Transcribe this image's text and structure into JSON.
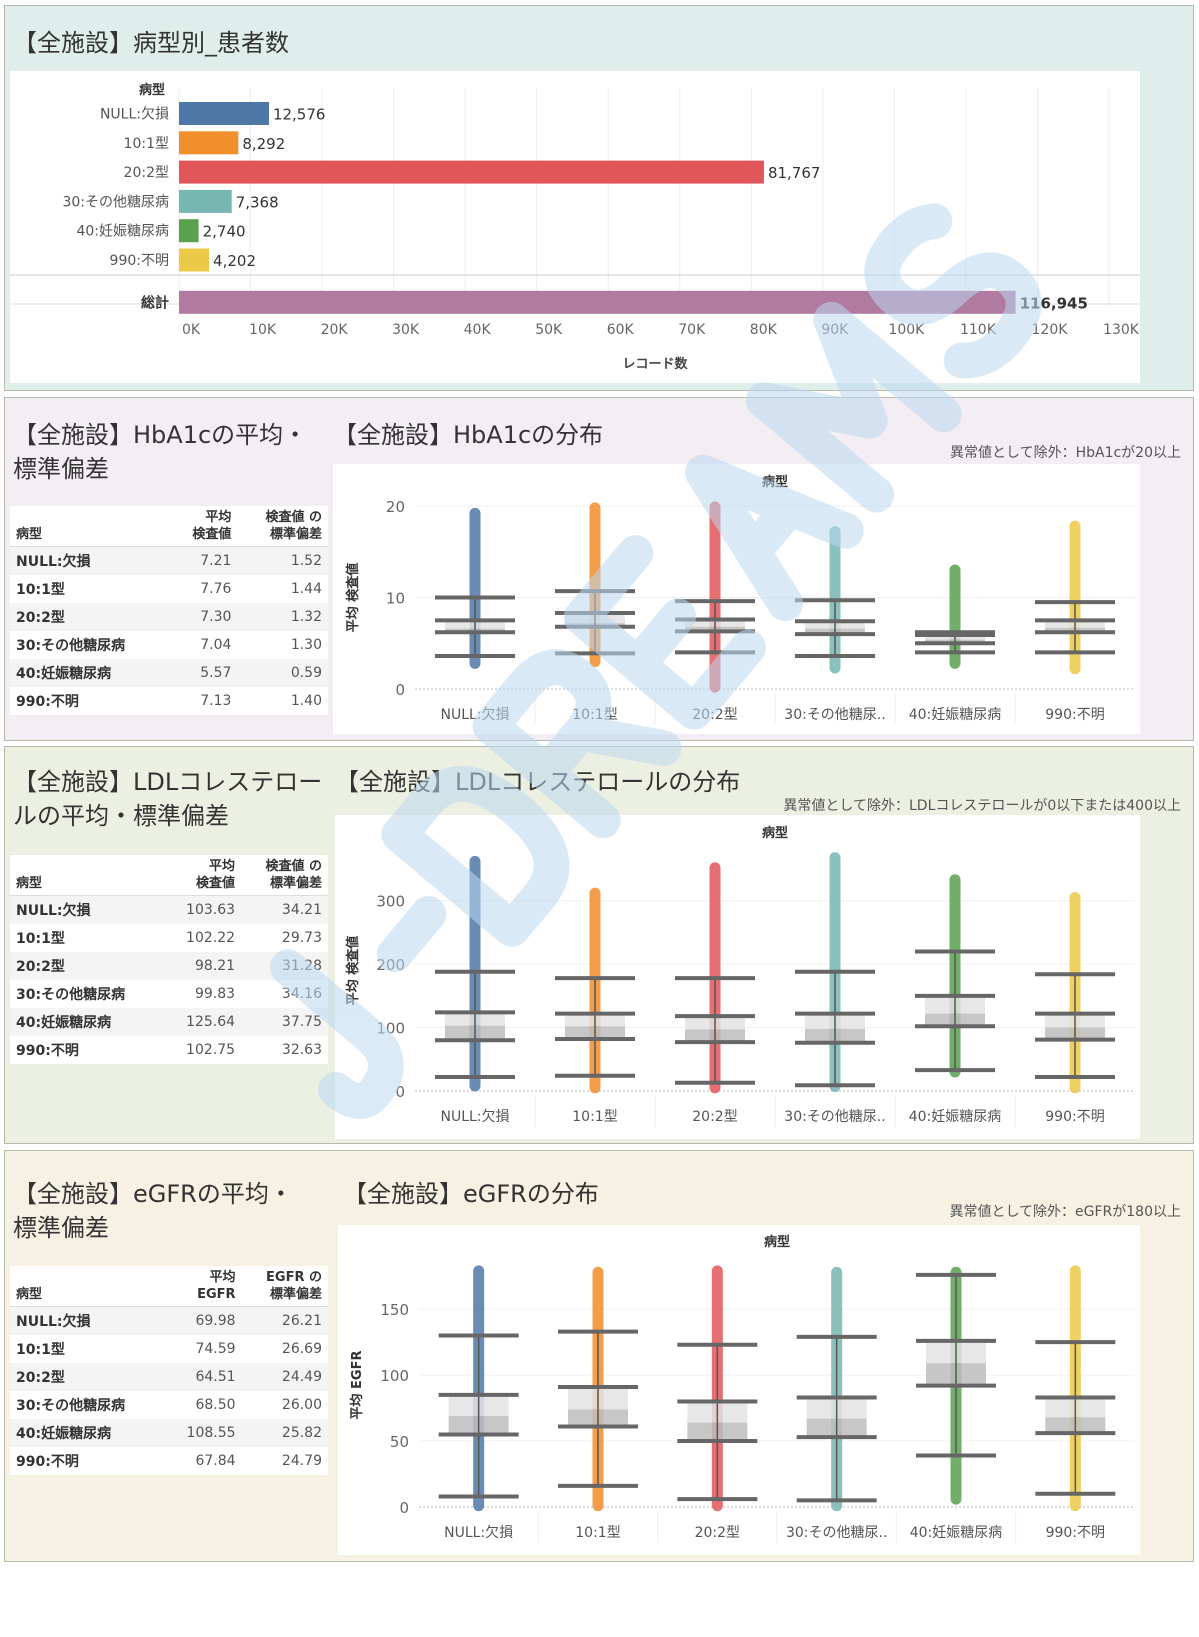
{
  "watermark": "J-DREAMS",
  "categories": [
    "NULL:欠損",
    "10:1型",
    "20:2型",
    "30:その他糖尿病",
    "40:妊娠糖尿病",
    "990:不明"
  ],
  "axis_categories": [
    "NULL:欠損",
    "10:1型",
    "20:2型",
    "30:その他糖尿..",
    "40:妊娠糖尿病",
    "990:不明"
  ],
  "colors": [
    "#4e79a7",
    "#f28e2b",
    "#e15759",
    "#76b7b2",
    "#59a14f",
    "#edc948"
  ],
  "total_color": "#b07aa1",
  "panel1": {
    "title": "【全施設】病型別_患者数"
  },
  "panel2": {
    "title": "【全施設】HbA1cの平均・\n標準偏差",
    "chart_title": "【全施設】HbA1cの分布",
    "note": "異常値として除外：HbA1cが20以上",
    "table": {
      "headers": [
        "病型",
        "平均\n検査値",
        "検査値 の\n標準偏差"
      ],
      "rows": [
        [
          "NULL:欠損",
          "7.21",
          "1.52"
        ],
        [
          "10:1型",
          "7.76",
          "1.44"
        ],
        [
          "20:2型",
          "7.30",
          "1.32"
        ],
        [
          "30:その他糖尿病",
          "7.04",
          "1.30"
        ],
        [
          "40:妊娠糖尿病",
          "5.57",
          "0.59"
        ],
        [
          "990:不明",
          "7.13",
          "1.40"
        ]
      ]
    }
  },
  "panel3": {
    "title": "【全施設】LDLコレステロー\nルの平均・標準偏差",
    "chart_title": "【全施設】LDLコレステロールの分布",
    "note": "異常値として除外：LDLコレステロールが0以下または400以上",
    "table": {
      "headers": [
        "病型",
        "平均\n検査値",
        "検査値 の\n標準偏差"
      ],
      "rows": [
        [
          "NULL:欠損",
          "103.63",
          "34.21"
        ],
        [
          "10:1型",
          "102.22",
          "29.73"
        ],
        [
          "20:2型",
          "98.21",
          "31.28"
        ],
        [
          "30:その他糖尿病",
          "99.83",
          "34.16"
        ],
        [
          "40:妊娠糖尿病",
          "125.64",
          "37.75"
        ],
        [
          "990:不明",
          "102.75",
          "32.63"
        ]
      ]
    }
  },
  "panel4": {
    "title": "【全施設】eGFRの平均・\n標準偏差",
    "chart_title": "【全施設】eGFRの分布",
    "note": "異常値として除外：eGFRが180以上",
    "table": {
      "headers": [
        "病型",
        "平均\nEGFR",
        "EGFR の\n標準偏差"
      ],
      "rows": [
        [
          "NULL:欠損",
          "69.98",
          "26.21"
        ],
        [
          "10:1型",
          "74.59",
          "26.69"
        ],
        [
          "20:2型",
          "64.51",
          "24.49"
        ],
        [
          "30:その他糖尿病",
          "68.50",
          "26.00"
        ],
        [
          "40:妊娠糖尿病",
          "108.55",
          "25.82"
        ],
        [
          "990:不明",
          "67.84",
          "24.79"
        ]
      ]
    }
  },
  "chart_data": [
    {
      "type": "bar",
      "orientation": "horizontal",
      "title": "【全施設】病型別_患者数",
      "ylabel": "病型",
      "xlabel": "レコード数",
      "categories": [
        "NULL:欠損",
        "10:1型",
        "20:2型",
        "30:その他糖尿病",
        "40:妊娠糖尿病",
        "990:不明",
        "総計"
      ],
      "values": [
        12576,
        8292,
        81767,
        7368,
        2740,
        4202,
        116945
      ],
      "labels": [
        "12,576",
        "8,292",
        "81,767",
        "7,368",
        "2,740",
        "4,202",
        "116,945"
      ],
      "xlim": [
        0,
        130000
      ],
      "ticks": [
        "0K",
        "10K",
        "20K",
        "30K",
        "40K",
        "50K",
        "60K",
        "70K",
        "80K",
        "90K",
        "100K",
        "110K",
        "120K",
        "130K"
      ],
      "grid": true
    },
    {
      "type": "boxplot",
      "title": "【全施設】HbA1cの分布",
      "header": "病型",
      "ylabel": "平均 検査値",
      "ylim": [
        0,
        20
      ],
      "yticks": [
        0,
        10,
        20
      ],
      "boxes": [
        {
          "min": 2.8,
          "low": 3.6,
          "q1": 6.2,
          "median": 6.6,
          "q3": 7.5,
          "high": 10.0,
          "max": 19.2
        },
        {
          "min": 3.0,
          "low": 3.9,
          "q1": 6.8,
          "median": 7.2,
          "q3": 8.3,
          "high": 10.7,
          "max": 19.8
        },
        {
          "min": 0.2,
          "low": 4.0,
          "q1": 6.3,
          "median": 6.8,
          "q3": 7.6,
          "high": 9.6,
          "max": 19.9
        },
        {
          "min": 2.3,
          "low": 3.6,
          "q1": 6.0,
          "median": 6.6,
          "q3": 7.4,
          "high": 9.7,
          "max": 17.2
        },
        {
          "min": 2.8,
          "low": 4.0,
          "q1": 5.0,
          "median": 5.4,
          "q3": 5.9,
          "high": 6.2,
          "max": 13.0
        },
        {
          "min": 2.2,
          "low": 4.0,
          "q1": 6.2,
          "median": 6.7,
          "q3": 7.5,
          "high": 9.5,
          "max": 17.8
        }
      ]
    },
    {
      "type": "boxplot",
      "title": "【全施設】LDLコレステロールの分布",
      "header": "病型",
      "ylabel": "平均 検査値",
      "ylim": [
        0,
        380
      ],
      "yticks": [
        0,
        100,
        200,
        300
      ],
      "boxes": [
        {
          "min": 8,
          "low": 22,
          "q1": 80,
          "median": 103,
          "q3": 124,
          "high": 188,
          "max": 362
        },
        {
          "min": 5,
          "low": 24,
          "q1": 82,
          "median": 102,
          "q3": 122,
          "high": 178,
          "max": 312
        },
        {
          "min": 5,
          "low": 13,
          "q1": 77,
          "median": 97,
          "q3": 118,
          "high": 178,
          "max": 352
        },
        {
          "min": 7,
          "low": 9,
          "q1": 76,
          "median": 98,
          "q3": 122,
          "high": 188,
          "max": 368
        },
        {
          "min": 30,
          "low": 33,
          "q1": 102,
          "median": 122,
          "q3": 150,
          "high": 220,
          "max": 333
        },
        {
          "min": 5,
          "low": 22,
          "q1": 81,
          "median": 100,
          "q3": 122,
          "high": 184,
          "max": 305
        }
      ]
    },
    {
      "type": "boxplot",
      "title": "【全施設】eGFRの分布",
      "header": "病型",
      "ylabel": "平均 EGFR",
      "ylim": [
        0,
        185
      ],
      "yticks": [
        0,
        50,
        100,
        150
      ],
      "boxes": [
        {
          "min": 1,
          "low": 8,
          "q1": 55,
          "median": 69,
          "q3": 85,
          "high": 130,
          "max": 179
        },
        {
          "min": 1,
          "low": 16,
          "q1": 61,
          "median": 74,
          "q3": 91,
          "high": 133,
          "max": 178
        },
        {
          "min": 1,
          "low": 6,
          "q1": 50,
          "median": 64,
          "q3": 80,
          "high": 123,
          "max": 179
        },
        {
          "min": 1,
          "low": 5,
          "q1": 53,
          "median": 67,
          "q3": 83,
          "high": 129,
          "max": 178
        },
        {
          "min": 6,
          "low": 39,
          "q1": 92,
          "median": 109,
          "q3": 126,
          "high": 176,
          "max": 178
        },
        {
          "min": 1,
          "low": 10,
          "q1": 56,
          "median": 68,
          "q3": 83,
          "high": 125,
          "max": 179
        }
      ]
    }
  ]
}
